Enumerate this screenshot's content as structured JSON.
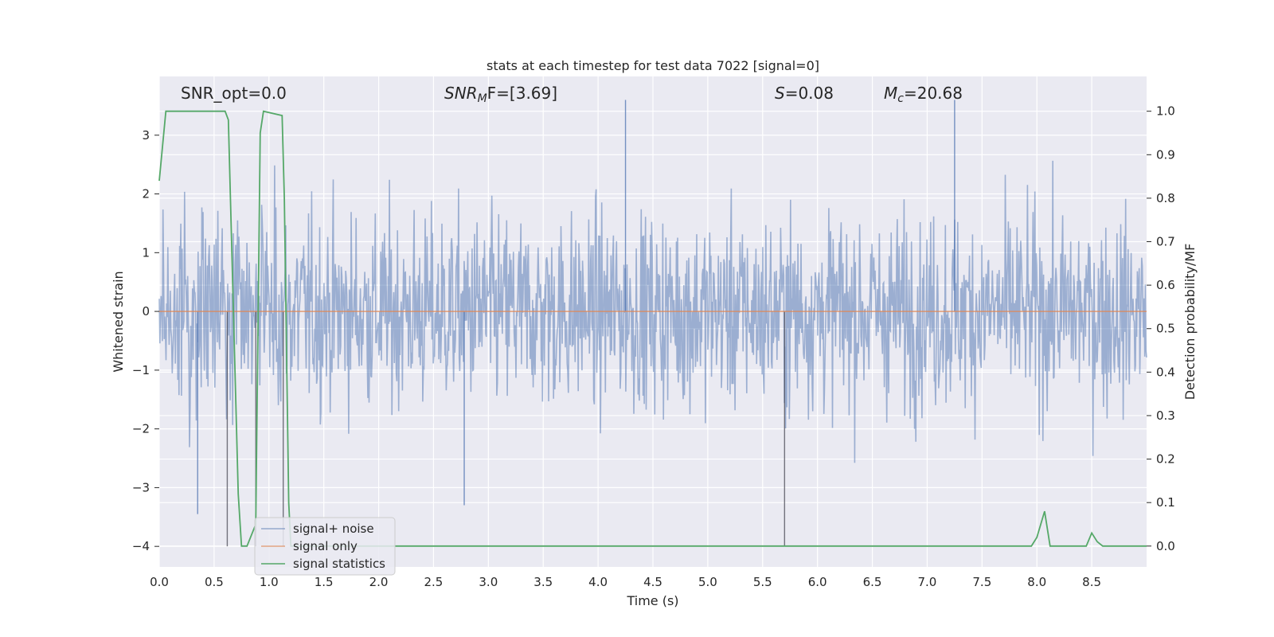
{
  "chart_data": {
    "type": "line",
    "title": "stats at each timestep for test data 7022 [signal=0]",
    "xlabel": "Time (s)",
    "ylabel": "Whitened strain",
    "ylabel_right": "Detection probability/MF",
    "xlim": [
      0.0,
      9.0
    ],
    "ylim": [
      -4.35,
      4.0
    ],
    "ylim_right": [
      -0.048,
      1.08
    ],
    "x_ticks": [
      "0.0",
      "0.5",
      "1.0",
      "1.5",
      "2.0",
      "2.5",
      "3.0",
      "3.5",
      "4.0",
      "4.5",
      "5.0",
      "5.5",
      "6.0",
      "6.5",
      "7.0",
      "7.5",
      "8.0",
      "8.5"
    ],
    "y_ticks": [
      "−4",
      "−3",
      "−2",
      "−1",
      "0",
      "1",
      "2",
      "3"
    ],
    "y_right_ticks": [
      "0.0",
      "0.1",
      "0.2",
      "0.3",
      "0.4",
      "0.5",
      "0.6",
      "0.7",
      "0.8",
      "0.9",
      "1.0"
    ],
    "annotations": {
      "snr_opt": "SNR_opt=0.0",
      "snr_mf_main": "SNR",
      "snr_mf_sub": "M",
      "snr_mf_rest": "F=[3.69]",
      "s_main": "S",
      "s_rest": "=0.08",
      "mc_main": "M",
      "mc_sub": "c",
      "mc_rest": "=20.68"
    },
    "legend": {
      "placement": "lower-left",
      "entries": [
        "signal+ noise",
        "signal only",
        "signal statistics"
      ]
    },
    "grid": true,
    "series": [
      {
        "name": "signal+ noise",
        "color": "#4c72b0",
        "kind": "dense noise",
        "typical_range": [
          -1.8,
          1.8
        ],
        "extremes": [
          {
            "x": 0.35,
            "y": -3.45
          },
          {
            "x": 0.62,
            "y": -4.0
          },
          {
            "x": 0.88,
            "y": -4.0
          },
          {
            "x": 1.13,
            "y": -4.0
          },
          {
            "x": 2.78,
            "y": -3.3
          },
          {
            "x": 4.25,
            "y": 3.6
          },
          {
            "x": 5.7,
            "y": -4.0
          },
          {
            "x": 7.25,
            "y": 3.6
          }
        ]
      },
      {
        "name": "signal only",
        "color": "#dd8452",
        "x": [
          0.0,
          9.0
        ],
        "y": [
          0.0,
          0.0
        ]
      },
      {
        "name": "signal statistics",
        "color": "#55a868",
        "axis": "right",
        "x": [
          0.0,
          0.06,
          0.1,
          0.6,
          0.63,
          0.72,
          0.75,
          0.8,
          0.88,
          0.92,
          0.95,
          1.12,
          1.14,
          1.18,
          1.2,
          7.95,
          8.0,
          8.07,
          8.12,
          8.45,
          8.5,
          8.55,
          8.6,
          9.0
        ],
        "y": [
          0.84,
          1.0,
          1.0,
          1.0,
          0.98,
          0.12,
          0.0,
          0.0,
          0.05,
          0.95,
          1.0,
          0.99,
          0.8,
          0.1,
          0.0,
          0.0,
          0.02,
          0.08,
          0.0,
          0.0,
          0.03,
          0.01,
          0.0,
          0.0
        ]
      }
    ]
  }
}
